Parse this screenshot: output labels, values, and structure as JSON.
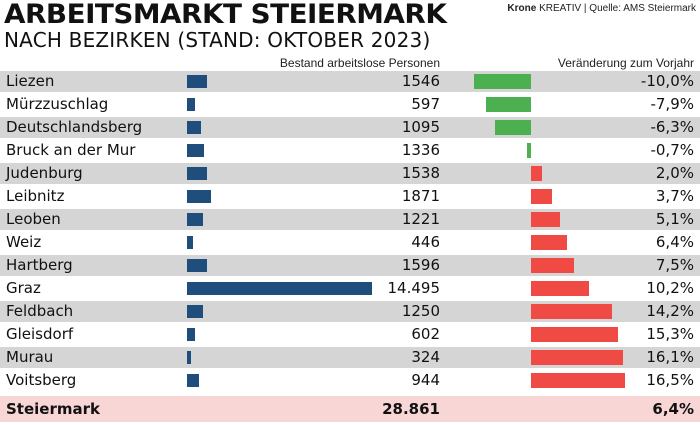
{
  "header": {
    "title": "ARBEITSMARKT STEIERMARK",
    "subtitle": "NACH BEZIRKEN (STAND: OKTOBER 2023)",
    "credit_brand": "Krone",
    "credit_rest": "KREATIV | Quelle: AMS Steiermark"
  },
  "columns": {
    "count": "Bestand arbeitslose Personen",
    "change": "Veränderung zum Vorjahr"
  },
  "colors": {
    "count_bar": "#1f4e7d",
    "decrease_bar": "#4caf50",
    "increase_bar": "#ef4a43",
    "row_shade": "#d5d5d5",
    "total_row": "#f8d6d6"
  },
  "chart_data": {
    "type": "bar",
    "categories": [
      "Liezen",
      "Mürzzuschlag",
      "Deutschlandsberg",
      "Bruck an der Mur",
      "Judenburg",
      "Leibnitz",
      "Leoben",
      "Weiz",
      "Hartberg",
      "Graz",
      "Feldbach",
      "Gleisdorf",
      "Murau",
      "Voitsberg"
    ],
    "series": [
      {
        "name": "Bestand arbeitslose Personen",
        "values": [
          1546,
          597,
          1095,
          1336,
          1538,
          1871,
          1221,
          446,
          1596,
          14495,
          1250,
          602,
          324,
          944
        ],
        "labels": [
          "1546",
          "597",
          "1095",
          "1336",
          "1538",
          "1871",
          "1221",
          "446",
          "1596",
          "14.495",
          "1250",
          "602",
          "324",
          "944"
        ]
      },
      {
        "name": "Veränderung zum Vorjahr",
        "values": [
          -10.0,
          -7.9,
          -6.3,
          -0.7,
          2.0,
          3.7,
          5.1,
          6.4,
          7.5,
          10.2,
          14.2,
          15.3,
          16.1,
          16.5
        ],
        "labels": [
          "-10,0%",
          "-7,9%",
          "-6,3%",
          "-0,7%",
          "2,0%",
          "3,7%",
          "5,1%",
          "6,4%",
          "7,5%",
          "10,2%",
          "14,2%",
          "15,3%",
          "16,1%",
          "16,5%"
        ]
      }
    ],
    "total": {
      "label": "Steiermark",
      "count": "28.861",
      "change": "6,4%"
    }
  }
}
